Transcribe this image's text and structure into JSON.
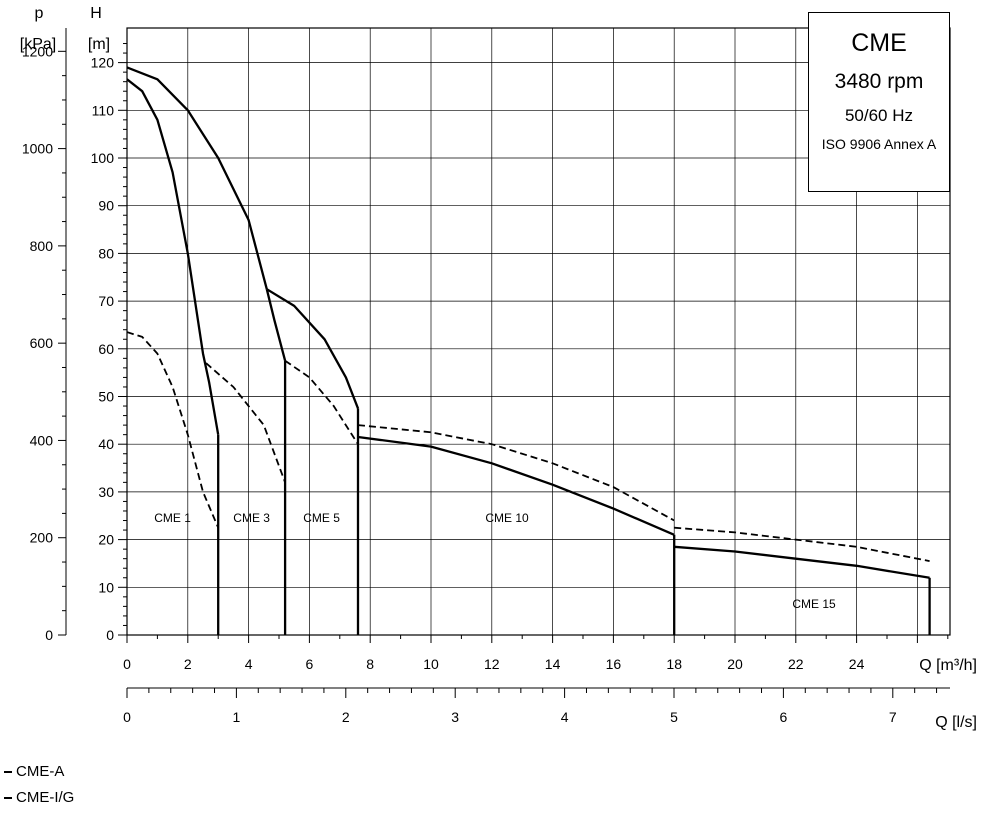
{
  "chart_data": {
    "type": "line",
    "units": {
      "p_label": "p",
      "p_unit": "[kPa]",
      "h_label": "H",
      "h_unit": "[m]",
      "q_m3h_label": "Q [m³/h]",
      "q_ls_label": "Q [l/s]"
    },
    "h_range": [
      0,
      125
    ],
    "q_range": [
      0,
      27
    ],
    "h_ticks": [
      0,
      10,
      20,
      30,
      40,
      50,
      60,
      70,
      80,
      90,
      100,
      110,
      120
    ],
    "p_ticks": [
      {
        "value": 0,
        "label": "0"
      },
      {
        "value": 200,
        "label": "200"
      },
      {
        "value": 400,
        "label": "400"
      },
      {
        "value": 600,
        "label": "600"
      },
      {
        "value": 800,
        "label": "800"
      },
      {
        "value": 1000,
        "label": "1000"
      },
      {
        "value": 1200,
        "label": "1200"
      }
    ],
    "q_ticks": [
      0,
      2,
      4,
      6,
      8,
      10,
      12,
      14,
      16,
      18,
      20,
      22,
      24
    ],
    "ls_ticks": [
      {
        "value": 0,
        "label": "0"
      },
      {
        "value": 1,
        "label": "1"
      },
      {
        "value": 2,
        "label": "2"
      },
      {
        "value": 3,
        "label": "3"
      },
      {
        "value": 4,
        "label": "4"
      },
      {
        "value": 5,
        "label": "5"
      },
      {
        "value": 6,
        "label": "6"
      },
      {
        "value": 7,
        "label": "7"
      }
    ],
    "series": [
      {
        "style": "solid",
        "points": [
          [
            0,
            116.5
          ],
          [
            0.5,
            114
          ],
          [
            1.0,
            108
          ],
          [
            1.5,
            97
          ],
          [
            2.0,
            80
          ],
          [
            2.5,
            59
          ],
          [
            2.7,
            53
          ],
          [
            3.0,
            42
          ]
        ]
      },
      {
        "style": "solid",
        "points": [
          [
            3.0,
            42
          ],
          [
            3.0,
            0
          ]
        ]
      },
      {
        "style": "solid",
        "points": [
          [
            0,
            119
          ],
          [
            1.0,
            116.5
          ],
          [
            2.0,
            110
          ],
          [
            3.0,
            100
          ],
          [
            4.0,
            87
          ],
          [
            4.6,
            72.5
          ]
        ]
      },
      {
        "style": "solid",
        "points": [
          [
            4.6,
            72.5
          ],
          [
            4.85,
            66
          ],
          [
            5.2,
            57.5
          ]
        ]
      },
      {
        "style": "solid",
        "points": [
          [
            5.2,
            57.5
          ],
          [
            5.2,
            0
          ]
        ]
      },
      {
        "style": "solid",
        "points": [
          [
            4.6,
            72.5
          ],
          [
            5.5,
            69
          ],
          [
            6.5,
            62
          ],
          [
            7.2,
            54
          ],
          [
            7.6,
            47.5
          ]
        ]
      },
      {
        "style": "solid",
        "points": [
          [
            7.6,
            47.5
          ],
          [
            7.6,
            0
          ]
        ]
      },
      {
        "style": "solid",
        "points": [
          [
            7.6,
            41.5
          ],
          [
            10,
            39.5
          ],
          [
            12,
            36
          ],
          [
            14,
            31.5
          ],
          [
            16,
            26.5
          ],
          [
            18,
            21
          ]
        ]
      },
      {
        "style": "solid",
        "points": [
          [
            18,
            21
          ],
          [
            18,
            0
          ]
        ]
      },
      {
        "style": "solid",
        "points": [
          [
            18,
            18.5
          ],
          [
            20,
            17.5
          ],
          [
            22,
            16
          ],
          [
            24,
            14.5
          ],
          [
            26.4,
            12
          ]
        ]
      },
      {
        "style": "solid",
        "points": [
          [
            26.4,
            12
          ],
          [
            26.4,
            0
          ]
        ]
      },
      {
        "style": "dashed",
        "points": [
          [
            0,
            63.5
          ],
          [
            0.5,
            62.5
          ],
          [
            1.0,
            59
          ],
          [
            1.5,
            52
          ],
          [
            2.0,
            42
          ],
          [
            2.5,
            30
          ],
          [
            3.0,
            22.5
          ]
        ]
      },
      {
        "style": "dashed",
        "points": [
          [
            2.6,
            57
          ],
          [
            3.5,
            52
          ],
          [
            4.5,
            44
          ],
          [
            5.2,
            32
          ]
        ]
      },
      {
        "style": "dashed",
        "points": [
          [
            5.2,
            57.5
          ],
          [
            6.0,
            54
          ],
          [
            6.8,
            48
          ],
          [
            7.6,
            40
          ]
        ]
      },
      {
        "style": "dashed",
        "points": [
          [
            7.6,
            44
          ],
          [
            10,
            42.5
          ],
          [
            12,
            40
          ],
          [
            14,
            36
          ],
          [
            16,
            31
          ],
          [
            18,
            24
          ]
        ]
      },
      {
        "style": "dashed",
        "points": [
          [
            18,
            22.5
          ],
          [
            20,
            21.5
          ],
          [
            22,
            20
          ],
          [
            24,
            18.5
          ],
          [
            26.4,
            15.5
          ]
        ]
      }
    ],
    "labels": [
      {
        "text": "CME 1",
        "x": 1.5,
        "y": 24.5
      },
      {
        "text": "CME 3",
        "x": 4.1,
        "y": 24.5
      },
      {
        "text": "CME 5",
        "x": 6.4,
        "y": 24.5
      },
      {
        "text": "CME 10",
        "x": 12.5,
        "y": 24.5
      },
      {
        "text": "CME 15",
        "x": 22.6,
        "y": 6.5
      }
    ]
  },
  "info_box": {
    "title": "CME",
    "speed": "3480 rpm",
    "frequency": "50/60 Hz",
    "standard": "ISO 9906 Annex A"
  },
  "legend": [
    {
      "label": "CME-A",
      "style": "dashed"
    },
    {
      "label": "CME-I/G",
      "style": "solid"
    }
  ]
}
